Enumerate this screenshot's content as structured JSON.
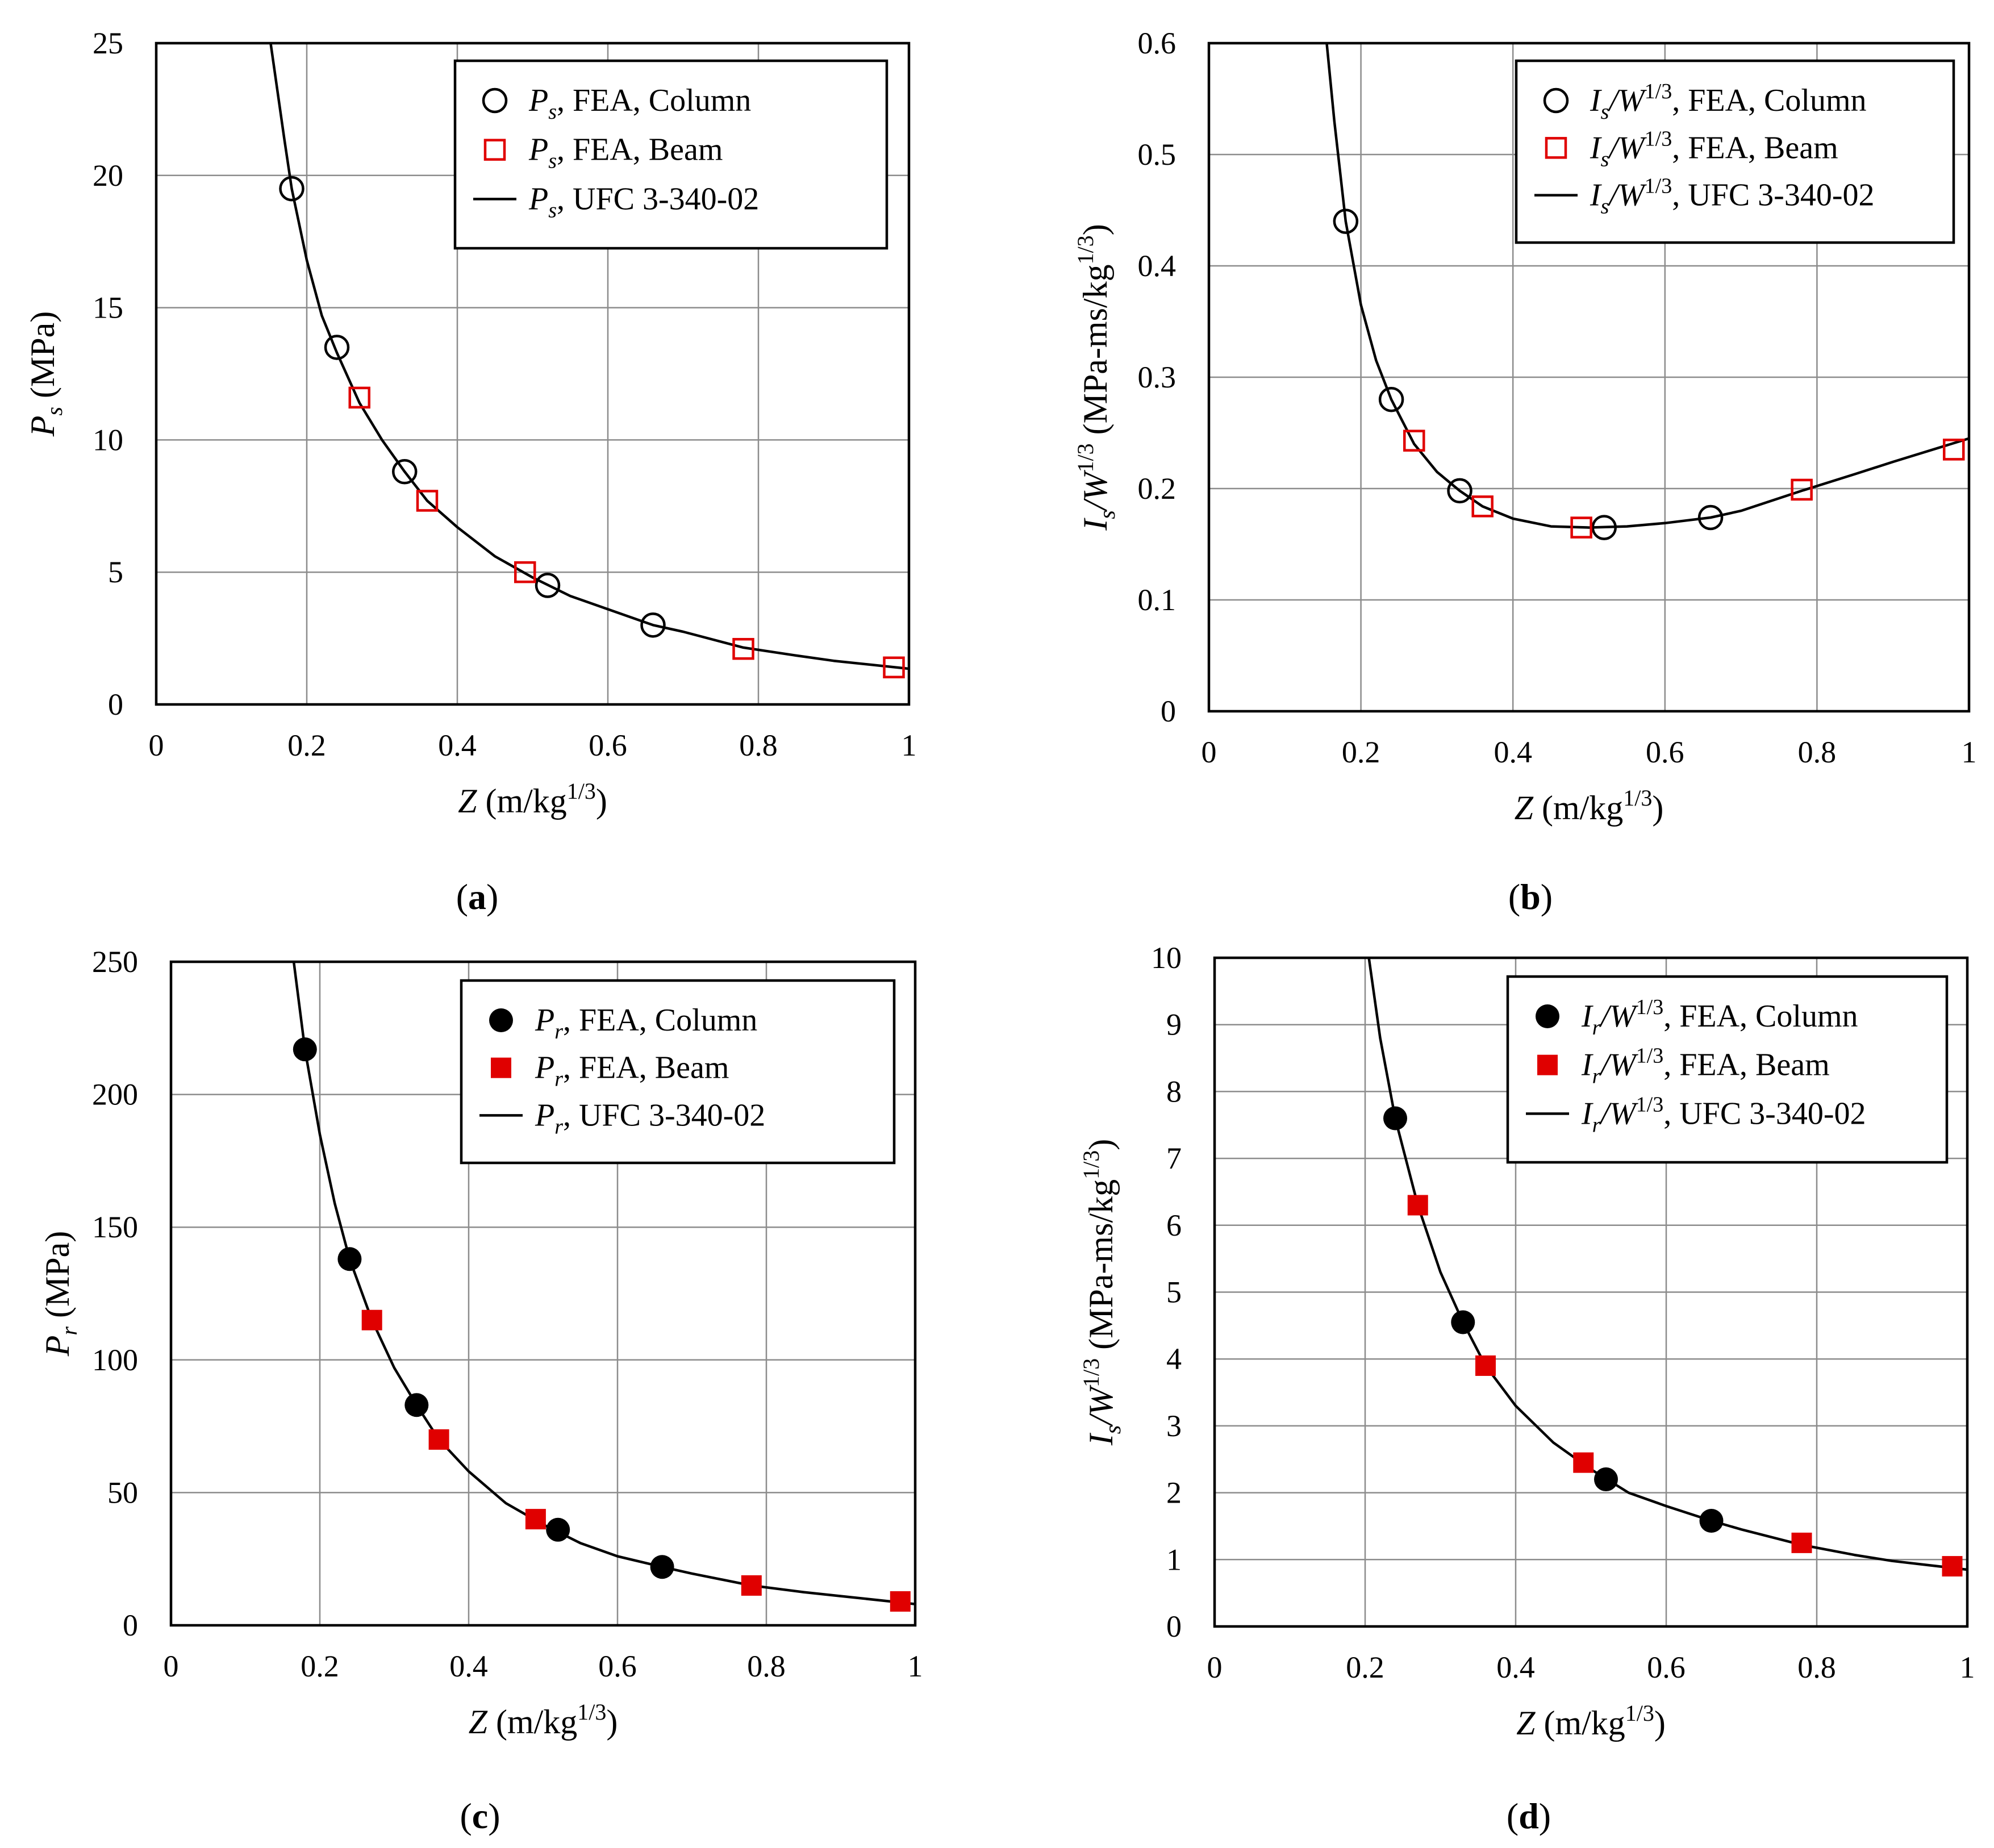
{
  "figure": {
    "colors": {
      "frame": "#000000",
      "grid": "#8c8c8c",
      "curve": "#000000",
      "column_marker": "#000000",
      "beam_marker": "#e00000"
    }
  },
  "chart_data": [
    {
      "id": "a",
      "type": "scatter",
      "panel_label": "(a)",
      "ylabel": {
        "sym": "P",
        "sub": "s",
        "post": " (MPa)"
      },
      "xlabel": {
        "sym": "Z",
        "pre": " (m/kg",
        "sup": "1/3",
        "post": ")"
      },
      "xlim": [
        0,
        1
      ],
      "ylim": [
        0,
        25
      ],
      "xticks": [
        0,
        0.2,
        0.4,
        0.6,
        0.8,
        1
      ],
      "xtick_labels": [
        "0",
        "0.2",
        "0.4",
        "0.6",
        "0.8",
        "1"
      ],
      "yticks": [
        0,
        5,
        10,
        15,
        20,
        25
      ],
      "ytick_labels": [
        "0",
        "5",
        "10",
        "15",
        "20",
        "25"
      ],
      "grid": true,
      "legend_position": "top-right",
      "series": [
        {
          "name": "P_s, FEA, Column",
          "marker": "circle",
          "filled": false,
          "color": "#000000",
          "legend": {
            "sym": "P",
            "sub": "s",
            "rest": ", FEA, Column"
          },
          "x": [
            0.18,
            0.24,
            0.33,
            0.52,
            0.66
          ],
          "y": [
            19.5,
            13.5,
            8.8,
            4.5,
            3.0
          ]
        },
        {
          "name": "P_s, FEA, Beam",
          "marker": "square",
          "filled": false,
          "color": "#e00000",
          "legend": {
            "sym": "P",
            "sub": "s",
            "rest": ", FEA, Beam"
          },
          "x": [
            0.27,
            0.36,
            0.49,
            0.78,
            0.98
          ],
          "y": [
            11.6,
            7.7,
            5.0,
            2.1,
            1.4
          ]
        },
        {
          "name": "P_s, UFC 3-340-02",
          "marker": "line",
          "color": "#000000",
          "legend": {
            "sym": "P",
            "sub": "s",
            "rest": ", UFC 3-340-02"
          },
          "x": [
            0.152,
            0.17,
            0.18,
            0.2,
            0.22,
            0.24,
            0.27,
            0.3,
            0.33,
            0.36,
            0.4,
            0.45,
            0.5,
            0.55,
            0.6,
            0.66,
            0.7,
            0.78,
            0.85,
            0.9,
            1.0
          ],
          "y": [
            25.0,
            21.4,
            19.5,
            16.8,
            14.7,
            13.3,
            11.4,
            10.0,
            8.8,
            7.7,
            6.7,
            5.6,
            4.8,
            4.1,
            3.6,
            3.0,
            2.75,
            2.15,
            1.85,
            1.65,
            1.35
          ]
        }
      ]
    },
    {
      "id": "b",
      "type": "scatter",
      "panel_label": "(b)",
      "ylabel": {
        "sym": "I",
        "sub": "s",
        "mid_sym": "/W",
        "mid_sup": "1/3",
        "post": " (MPa-ms/kg",
        "post_sup": "1/3",
        "close": ")"
      },
      "xlabel": {
        "sym": "Z",
        "pre": " (m/kg",
        "sup": "1/3",
        "post": ")"
      },
      "xlim": [
        0,
        1
      ],
      "ylim": [
        0,
        0.6
      ],
      "xticks": [
        0,
        0.2,
        0.4,
        0.6,
        0.8,
        1
      ],
      "xtick_labels": [
        "0",
        "0.2",
        "0.4",
        "0.6",
        "0.8",
        "1"
      ],
      "yticks": [
        0,
        0.1,
        0.2,
        0.3,
        0.4,
        0.5,
        0.6
      ],
      "ytick_labels": [
        "0",
        "0.1",
        "0.2",
        "0.3",
        "0.4",
        "0.5",
        "0.6"
      ],
      "grid": true,
      "legend_position": "top-right",
      "series": [
        {
          "name": "I_s/W^1/3, FEA, Column",
          "marker": "circle",
          "filled": false,
          "color": "#000000",
          "legend": {
            "sym": "I",
            "sub": "s",
            "mid": "/W",
            "sup": "1/3",
            "rest": ", FEA, Column"
          },
          "x": [
            0.18,
            0.24,
            0.33,
            0.52,
            0.66
          ],
          "y": [
            0.44,
            0.28,
            0.198,
            0.165,
            0.174
          ]
        },
        {
          "name": "I_s/W^1/3, FEA, Beam",
          "marker": "square",
          "filled": false,
          "color": "#e00000",
          "legend": {
            "sym": "I",
            "sub": "s",
            "mid": "/W",
            "sup": "1/3",
            "rest": ", FEA, Beam"
          },
          "x": [
            0.27,
            0.36,
            0.49,
            0.78,
            0.98
          ],
          "y": [
            0.243,
            0.184,
            0.165,
            0.199,
            0.235
          ]
        },
        {
          "name": "I_s/W^1/3, UFC 3-340-02",
          "marker": "line",
          "color": "#000000",
          "legend": {
            "sym": "I",
            "sub": "s",
            "mid": "/W",
            "sup": "1/3",
            "rest": ", UFC 3-340-02"
          },
          "x": [
            0.155,
            0.165,
            0.18,
            0.2,
            0.22,
            0.24,
            0.27,
            0.3,
            0.33,
            0.36,
            0.4,
            0.45,
            0.5,
            0.55,
            0.6,
            0.66,
            0.7,
            0.78,
            0.85,
            0.9,
            1.0
          ],
          "y": [
            0.6,
            0.53,
            0.44,
            0.365,
            0.315,
            0.28,
            0.24,
            0.215,
            0.198,
            0.184,
            0.173,
            0.166,
            0.165,
            0.166,
            0.169,
            0.174,
            0.18,
            0.198,
            0.213,
            0.224,
            0.245
          ]
        }
      ]
    },
    {
      "id": "c",
      "type": "scatter",
      "panel_label": "(c)",
      "ylabel": {
        "sym": "P",
        "sub": "r",
        "post": " (MPa)"
      },
      "xlabel": {
        "sym": "Z",
        "pre": " (m/kg",
        "sup": "1/3",
        "post": ")"
      },
      "xlim": [
        0,
        1
      ],
      "ylim": [
        0,
        250
      ],
      "xticks": [
        0,
        0.2,
        0.4,
        0.6,
        0.8,
        1
      ],
      "xtick_labels": [
        "0",
        "0.2",
        "0.4",
        "0.6",
        "0.8",
        "1"
      ],
      "yticks": [
        0,
        50,
        100,
        150,
        200,
        250
      ],
      "ytick_labels": [
        "0",
        "50",
        "100",
        "150",
        "200",
        "250"
      ],
      "grid": true,
      "legend_position": "top-right",
      "series": [
        {
          "name": "P_r, FEA, Column",
          "marker": "circle",
          "filled": true,
          "color": "#000000",
          "legend": {
            "sym": "P",
            "sub": "r",
            "rest": ", FEA, Column"
          },
          "x": [
            0.18,
            0.24,
            0.33,
            0.52,
            0.66
          ],
          "y": [
            217,
            138,
            83,
            36,
            22
          ]
        },
        {
          "name": "P_r, FEA, Beam",
          "marker": "square",
          "filled": true,
          "color": "#e00000",
          "legend": {
            "sym": "P",
            "sub": "r",
            "rest": ", FEA, Beam"
          },
          "x": [
            0.27,
            0.36,
            0.49,
            0.78,
            0.98
          ],
          "y": [
            115,
            70,
            40,
            15,
            9
          ]
        },
        {
          "name": "P_r, UFC 3-340-02",
          "marker": "line",
          "color": "#000000",
          "legend": {
            "sym": "P",
            "sub": "r",
            "rest": ", UFC 3-340-02"
          },
          "x": [
            0.165,
            0.18,
            0.2,
            0.22,
            0.24,
            0.27,
            0.3,
            0.33,
            0.36,
            0.4,
            0.45,
            0.5,
            0.55,
            0.6,
            0.66,
            0.7,
            0.78,
            0.85,
            0.9,
            1.0
          ],
          "y": [
            250,
            217,
            185,
            159,
            138,
            115,
            97,
            83,
            70,
            58,
            46,
            38,
            31,
            26,
            22,
            19.5,
            15,
            12.5,
            11,
            8
          ]
        }
      ]
    },
    {
      "id": "d",
      "type": "scatter",
      "panel_label": "(d)",
      "ylabel": {
        "sym": "I",
        "sub": "s",
        "mid_sym": "/W",
        "mid_sup": "1/3",
        "post": " (MPa-ms/kg",
        "post_sup": "1/3",
        "close": ")"
      },
      "xlabel": {
        "sym": "Z",
        "pre": " (m/kg",
        "sup": "1/3",
        "post": ")"
      },
      "xlim": [
        0,
        1
      ],
      "ylim": [
        0,
        10
      ],
      "xticks": [
        0,
        0.2,
        0.4,
        0.6,
        0.8,
        1
      ],
      "xtick_labels": [
        "0",
        "0.2",
        "0.4",
        "0.6",
        "0.8",
        "1"
      ],
      "yticks": [
        0,
        1,
        2,
        3,
        4,
        5,
        6,
        7,
        8,
        9,
        10
      ],
      "ytick_labels": [
        "0",
        "1",
        "2",
        "3",
        "4",
        "5",
        "6",
        "7",
        "8",
        "9",
        "10"
      ],
      "grid": true,
      "legend_position": "top-right",
      "series": [
        {
          "name": "I_r/W^1/3, FEA, Column",
          "marker": "circle",
          "filled": true,
          "color": "#000000",
          "legend": {
            "sym": "I",
            "sub": "r",
            "mid": "/W",
            "sup": "1/3",
            "rest": ", FEA, Column"
          },
          "x": [
            0.24,
            0.33,
            0.52,
            0.66
          ],
          "y": [
            7.6,
            4.55,
            2.2,
            1.58
          ]
        },
        {
          "name": "I_r/W^1/3, FEA, Beam",
          "marker": "square",
          "filled": true,
          "color": "#e00000",
          "legend": {
            "sym": "I",
            "sub": "r",
            "mid": "/W",
            "sup": "1/3",
            "rest": ", FEA, Beam"
          },
          "x": [
            0.27,
            0.36,
            0.49,
            0.78,
            0.98
          ],
          "y": [
            6.3,
            3.9,
            2.45,
            1.25,
            0.9
          ]
        },
        {
          "name": "I_r/W^1/3, UFC 3-340-02",
          "marker": "line",
          "color": "#000000",
          "legend": {
            "sym": "I",
            "sub": "r",
            "mid": "/W",
            "sup": "1/3",
            "rest": ", UFC 3-340-02"
          },
          "x": [
            0.205,
            0.22,
            0.24,
            0.27,
            0.3,
            0.33,
            0.36,
            0.4,
            0.45,
            0.5,
            0.55,
            0.6,
            0.66,
            0.7,
            0.78,
            0.85,
            0.9,
            1.0
          ],
          "y": [
            10.0,
            8.8,
            7.6,
            6.3,
            5.3,
            4.55,
            3.9,
            3.3,
            2.75,
            2.35,
            2.0,
            1.8,
            1.58,
            1.45,
            1.22,
            1.07,
            0.98,
            0.85
          ]
        }
      ]
    }
  ]
}
